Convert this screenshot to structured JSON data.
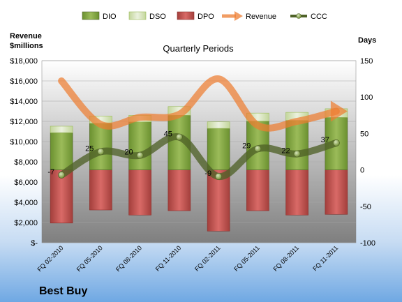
{
  "chart_data": {
    "type": "bar",
    "title": "Quarterly Periods",
    "company": "Best Buy",
    "left_axis_label_line1": "Revenue",
    "left_axis_label_line2": "$millions",
    "right_axis_label": "Days",
    "categories": [
      "FQ 02-2010",
      "FQ 05-2010",
      "FQ 08-2010",
      "FQ 11-2010",
      "FQ 02-2011",
      "FQ 05-2011",
      "FQ 08-2011",
      "FQ 11-2011"
    ],
    "left_ticks": [
      "$18,000",
      "$16,000",
      "$14,000",
      "$12,000",
      "$10,000",
      "$8,000",
      "$6,000",
      "$4,000",
      "$2,000",
      "$-"
    ],
    "right_ticks": [
      "150",
      "100",
      "50",
      "0",
      "-50",
      "-100"
    ],
    "ylim_left": [
      0,
      18000
    ],
    "ylim_right": [
      -100,
      150
    ],
    "legend": [
      "DIO",
      "DSO",
      "DPO",
      "Revenue",
      "CCC"
    ],
    "colors": {
      "DIO": "#7da43a",
      "DSO": "#d7e4bd",
      "DPO": "#c0504d",
      "Revenue": "#ed7d31",
      "CCC": "#4f6228"
    },
    "series": [
      {
        "name": "DPO",
        "axis": "right",
        "values": [
          -73,
          -55,
          -62,
          -56,
          -84,
          -56,
          -62,
          -61
        ]
      },
      {
        "name": "DIO",
        "axis": "right",
        "values": [
          51,
          64,
          66,
          75,
          57,
          67,
          68,
          72
        ]
      },
      {
        "name": "DSO",
        "axis": "right",
        "values": [
          9,
          10,
          9,
          12,
          9,
          11,
          11,
          12
        ]
      },
      {
        "name": "Revenue",
        "axis": "left",
        "values": [
          16000,
          11700,
          12400,
          12700,
          16200,
          11600,
          12000,
          13000
        ]
      },
      {
        "name": "CCC",
        "axis": "right",
        "values": [
          -7,
          25,
          20,
          45,
          -9,
          29,
          22,
          37
        ],
        "labels": [
          "-7",
          "25",
          "20",
          "45",
          "-9",
          "29",
          "22",
          "37"
        ]
      }
    ]
  }
}
